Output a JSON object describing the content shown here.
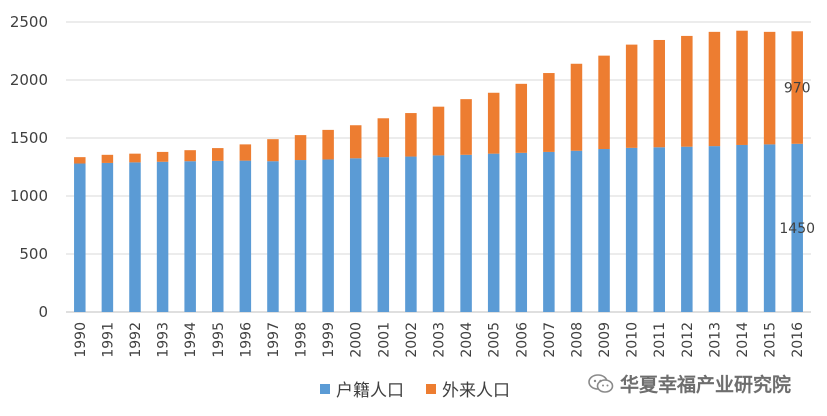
{
  "chart_data": {
    "type": "bar",
    "stacked": true,
    "title": "",
    "xlabel": "",
    "ylabel": "",
    "ylim": [
      0,
      2500
    ],
    "yticks": [
      0,
      500,
      1000,
      1500,
      2000,
      2500
    ],
    "grid": true,
    "legend_position": "bottom",
    "categories": [
      "1990",
      "1991",
      "1992",
      "1993",
      "1994",
      "1995",
      "1996",
      "1997",
      "1998",
      "1999",
      "2000",
      "2001",
      "2002",
      "2003",
      "2004",
      "2005",
      "2006",
      "2007",
      "2008",
      "2009",
      "2010",
      "2011",
      "2012",
      "2013",
      "2014",
      "2015",
      "2016"
    ],
    "series": [
      {
        "name": "户籍人口",
        "color": "#5b9bd5",
        "values": [
          1280,
          1285,
          1290,
          1295,
          1300,
          1303,
          1305,
          1300,
          1310,
          1315,
          1325,
          1335,
          1340,
          1350,
          1355,
          1365,
          1372,
          1380,
          1390,
          1405,
          1415,
          1420,
          1425,
          1430,
          1440,
          1445,
          1450
        ]
      },
      {
        "name": "外来人口",
        "color": "#ed7d31",
        "values": [
          55,
          70,
          75,
          85,
          95,
          110,
          140,
          190,
          215,
          255,
          285,
          335,
          375,
          420,
          480,
          525,
          595,
          680,
          750,
          805,
          890,
          925,
          955,
          985,
          985,
          970,
          970
        ]
      }
    ],
    "annotations": [
      {
        "category": "2016",
        "series": "外来人口",
        "text": "970"
      },
      {
        "category": "2016",
        "series": "户籍人口",
        "text": "1450"
      }
    ]
  },
  "watermark": {
    "text": "华夏幸福产业研究院",
    "icon": "wechat-icon"
  }
}
